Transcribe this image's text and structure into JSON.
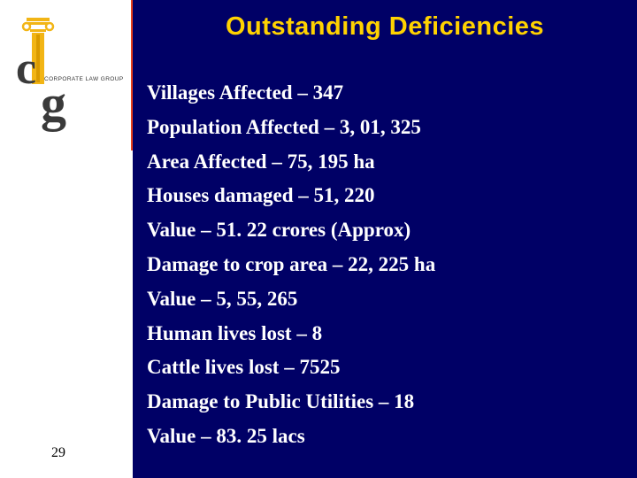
{
  "slide": {
    "title": "Outstanding Deficiencies",
    "page_number": "29",
    "items": [
      "Villages Affected – 347",
      "Population Affected – 3, 01, 325",
      "Area Affected – 75, 195 ha",
      "Houses damaged – 51, 220",
      "Value – 51. 22 crores (Approx)",
      "Damage to crop area – 22, 225 ha",
      "Value – 5, 55, 265",
      "Human lives lost – 8",
      "Cattle lives lost – 7525",
      "Damage to Public Utilities – 18",
      "Value – 83. 25 lacs"
    ]
  },
  "logo": {
    "caption": "CORPORATE LAW GROUP",
    "letter_c": "c",
    "letter_g": "g"
  },
  "colors": {
    "main_background": "#000066",
    "title": "#ffd200",
    "accent_bar": "#e8401c",
    "body_text": "#ffffff",
    "logo_column": "#f2b515"
  }
}
